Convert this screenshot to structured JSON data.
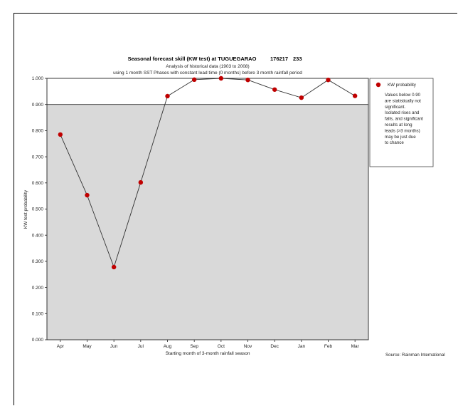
{
  "chart_data": {
    "type": "line",
    "title": "Seasonal forecast skill (KW test) at TUGUEGARAO",
    "station_id": "176217",
    "station_num": "233",
    "subtitle1": "Analysis of historical data (1903 to 2008)",
    "subtitle2": "using 1 month SST Phases with constant lead time (0 months) before 3 month rainfall period",
    "xlabel": "Starting month of 3-month rainfall season",
    "ylabel": "KW test probability",
    "categories": [
      "Apr",
      "May",
      "Jun",
      "Jul",
      "Aug",
      "Sep",
      "Oct",
      "Nov",
      "Dec",
      "Jan",
      "Feb",
      "Mar"
    ],
    "series": [
      {
        "name": "KW probability",
        "values": [
          0.785,
          0.553,
          0.278,
          0.602,
          0.932,
          0.995,
          1.0,
          0.994,
          0.957,
          0.926,
          0.994,
          0.933
        ],
        "color": "#c00000"
      }
    ],
    "ylim": [
      0.0,
      1.0
    ],
    "yticks": [
      "0.000",
      "0.100",
      "0.200",
      "0.300",
      "0.400",
      "0.500",
      "0.600",
      "0.700",
      "0.800",
      "0.900",
      "1.000"
    ],
    "threshold": 0.9,
    "shade_color": "#d9d9d9",
    "legend": {
      "label": "KW probability",
      "note_lines": [
        "Values below 0.90",
        "are statistically not",
        "significant.",
        "Isolated rises and",
        "falls, and significant",
        "results at long",
        "leads (>3 months)",
        "may be just due",
        "to chance"
      ]
    },
    "source": "Source: Rainman International"
  }
}
